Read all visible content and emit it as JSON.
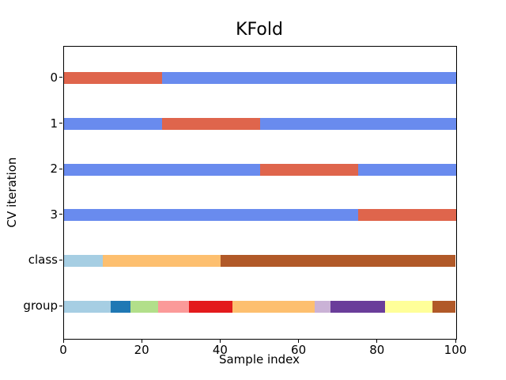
{
  "chart_data": {
    "type": "bar",
    "subtype": "cross-validation-indices-plot",
    "title": "KFold",
    "xlabel": "Sample index",
    "ylabel": "CV iteration",
    "xlim": [
      0,
      100
    ],
    "xticks": [
      0,
      20,
      40,
      60,
      80,
      100
    ],
    "yticklabels": [
      "0",
      "1",
      "2",
      "3",
      "class",
      "group"
    ],
    "grid": false,
    "legend_position": "none",
    "n_splits": 4,
    "n_samples": 100,
    "colors": {
      "cv_train": "#698bee",
      "cv_test": "#df654c",
      "paired_lightblue": "#a6cee3",
      "paired_blue": "#1f78b4",
      "paired_lightgreen": "#b2df8a",
      "paired_pink": "#fb9a99",
      "paired_red": "#e31a1c",
      "paired_lightorange": "#fdbf6f",
      "paired_lavender": "#cab2d6",
      "paired_purple": "#6a3d9a",
      "paired_lightyellow": "#ffff99",
      "paired_brown": "#b15928"
    },
    "rows": [
      {
        "label": "0",
        "segments": [
          {
            "from": 0,
            "to": 25,
            "color": "cv_test"
          },
          {
            "from": 25,
            "to": 100,
            "color": "cv_train"
          }
        ]
      },
      {
        "label": "1",
        "segments": [
          {
            "from": 0,
            "to": 25,
            "color": "cv_train"
          },
          {
            "from": 25,
            "to": 50,
            "color": "cv_test"
          },
          {
            "from": 50,
            "to": 100,
            "color": "cv_train"
          }
        ]
      },
      {
        "label": "2",
        "segments": [
          {
            "from": 0,
            "to": 50,
            "color": "cv_train"
          },
          {
            "from": 50,
            "to": 75,
            "color": "cv_test"
          },
          {
            "from": 75,
            "to": 100,
            "color": "cv_train"
          }
        ]
      },
      {
        "label": "3",
        "segments": [
          {
            "from": 0,
            "to": 75,
            "color": "cv_train"
          },
          {
            "from": 75,
            "to": 100,
            "color": "cv_test"
          }
        ]
      },
      {
        "label": "class",
        "segments": [
          {
            "from": 0,
            "to": 10,
            "color": "paired_lightblue"
          },
          {
            "from": 10,
            "to": 40,
            "color": "paired_lightorange"
          },
          {
            "from": 40,
            "to": 100,
            "color": "paired_brown"
          }
        ]
      },
      {
        "label": "group",
        "segments": [
          {
            "from": 0,
            "to": 12,
            "color": "paired_lightblue"
          },
          {
            "from": 12,
            "to": 17,
            "color": "paired_blue"
          },
          {
            "from": 17,
            "to": 24,
            "color": "paired_lightgreen"
          },
          {
            "from": 24,
            "to": 32,
            "color": "paired_pink"
          },
          {
            "from": 32,
            "to": 43,
            "color": "paired_red"
          },
          {
            "from": 43,
            "to": 64,
            "color": "paired_lightorange"
          },
          {
            "from": 64,
            "to": 68,
            "color": "paired_lavender"
          },
          {
            "from": 68,
            "to": 82,
            "color": "paired_purple"
          },
          {
            "from": 82,
            "to": 94,
            "color": "paired_lightyellow"
          },
          {
            "from": 94,
            "to": 100,
            "color": "paired_brown"
          }
        ]
      }
    ]
  }
}
